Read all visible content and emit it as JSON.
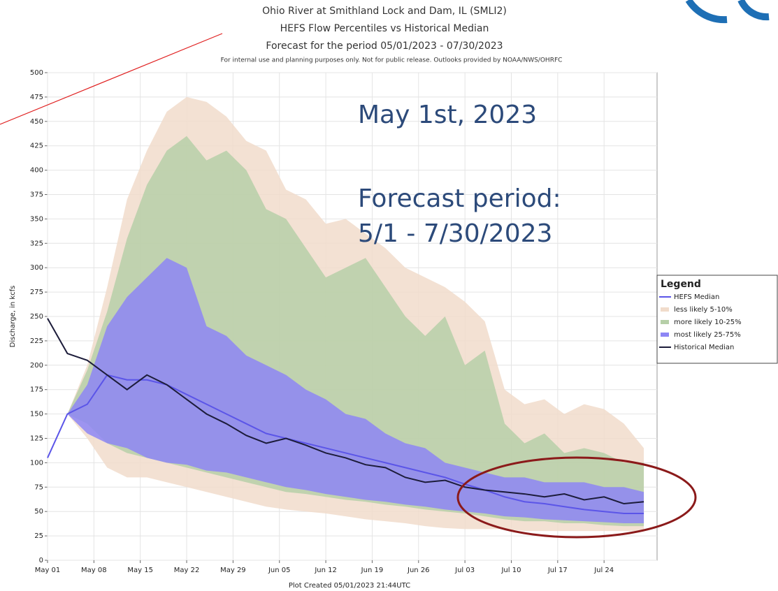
{
  "chart_data": {
    "type": "fan",
    "titles": [
      "Ohio River at Smithland Lock and Dam, IL (SMLI2)",
      "HEFS Flow Percentiles vs Historical Median",
      "Forecast for the period 05/01/2023  - 07/30/2023"
    ],
    "note": "For internal use and planning purposes only. Not for public release.  Outlooks provided by NOAA/NWS/OHRFC",
    "y_label": "Discharge, in kcfs",
    "x_label": "Plot Created 05/01/2023 21:44UTC",
    "annotations": [
      "May 1st, 2023",
      "Forecast period:",
      "5/1 - 7/30/2023"
    ],
    "legend_title": "Legend",
    "x": [
      0,
      3,
      6,
      9,
      12,
      15,
      18,
      21,
      24,
      27,
      30,
      33,
      36,
      39,
      42,
      45,
      48,
      51,
      54,
      57,
      60,
      63,
      66,
      69,
      72,
      75,
      78,
      81,
      84,
      87,
      90
    ],
    "xlim": [
      0,
      92
    ],
    "xticks": [
      {
        "value": 0,
        "label": "May 01"
      },
      {
        "value": 7,
        "label": "May 08"
      },
      {
        "value": 14,
        "label": "May 15"
      },
      {
        "value": 21,
        "label": "May 22"
      },
      {
        "value": 28,
        "label": "May 29"
      },
      {
        "value": 35,
        "label": "Jun 05"
      },
      {
        "value": 42,
        "label": "Jun 12"
      },
      {
        "value": 49,
        "label": "Jun 19"
      },
      {
        "value": 56,
        "label": "Jun 26"
      },
      {
        "value": 63,
        "label": "Jul 03"
      },
      {
        "value": 70,
        "label": "Jul 10"
      },
      {
        "value": 77,
        "label": "Jul 17"
      },
      {
        "value": 84,
        "label": "Jul 24"
      }
    ],
    "ylim": [
      0,
      500
    ],
    "yticks": [
      0,
      25,
      50,
      75,
      100,
      125,
      150,
      175,
      200,
      225,
      250,
      275,
      300,
      325,
      350,
      375,
      400,
      425,
      450,
      475,
      500
    ],
    "bands": [
      {
        "name": "less likely 5-10%",
        "color": "#f1dccb",
        "lower": [
          105,
          150,
          125,
          95,
          85,
          85,
          80,
          75,
          70,
          65,
          60,
          55,
          52,
          50,
          48,
          45,
          42,
          40,
          38,
          35,
          33,
          32,
          32,
          32,
          30,
          30,
          30,
          30,
          30,
          30,
          30
        ],
        "upper": [
          105,
          150,
          200,
          280,
          370,
          420,
          460,
          475,
          470,
          455,
          430,
          420,
          380,
          370,
          345,
          350,
          335,
          320,
          300,
          290,
          280,
          265,
          245,
          175,
          160,
          165,
          150,
          160,
          155,
          140,
          115
        ]
      },
      {
        "name": "more likely 10-25%",
        "color": "#b6cfa8",
        "lower": [
          105,
          150,
          140,
          120,
          110,
          105,
          100,
          95,
          90,
          85,
          80,
          75,
          70,
          68,
          65,
          62,
          60,
          57,
          55,
          52,
          50,
          48,
          45,
          42,
          40,
          40,
          38,
          38,
          36,
          35,
          35
        ],
        "upper": [
          105,
          150,
          195,
          255,
          330,
          385,
          420,
          435,
          410,
          420,
          400,
          360,
          350,
          320,
          290,
          300,
          310,
          280,
          250,
          230,
          250,
          200,
          215,
          140,
          120,
          130,
          110,
          115,
          110,
          100,
          100
        ]
      },
      {
        "name": "most likely 25-75%",
        "color": "#8d86f5",
        "lower": [
          105,
          150,
          130,
          120,
          115,
          105,
          100,
          98,
          92,
          90,
          85,
          80,
          75,
          72,
          68,
          65,
          62,
          60,
          57,
          55,
          52,
          50,
          48,
          45,
          44,
          42,
          41,
          40,
          39,
          38,
          38
        ],
        "upper": [
          105,
          150,
          180,
          240,
          270,
          290,
          310,
          300,
          240,
          230,
          210,
          200,
          190,
          175,
          165,
          150,
          145,
          130,
          120,
          115,
          100,
          95,
          90,
          85,
          85,
          80,
          80,
          80,
          75,
          75,
          70
        ]
      }
    ],
    "series": [
      {
        "name": "HEFS Median",
        "color": "#5b55e8",
        "values": [
          105,
          150,
          160,
          190,
          185,
          185,
          180,
          170,
          160,
          150,
          140,
          130,
          125,
          120,
          115,
          110,
          105,
          100,
          95,
          90,
          85,
          78,
          72,
          65,
          60,
          58,
          55,
          52,
          50,
          48,
          48
        ]
      },
      {
        "name": "Historical Median",
        "color": "#1c1c3a",
        "values": [
          248,
          212,
          205,
          190,
          175,
          190,
          180,
          165,
          150,
          140,
          128,
          120,
          125,
          118,
          110,
          105,
          98,
          95,
          85,
          80,
          82,
          75,
          72,
          70,
          68,
          65,
          68,
          62,
          65,
          58,
          60
        ]
      }
    ]
  }
}
